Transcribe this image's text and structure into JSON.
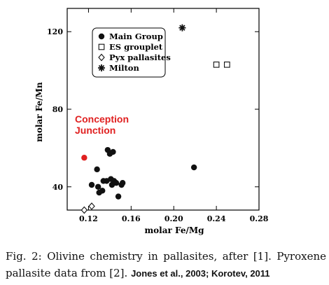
{
  "chart_data": {
    "type": "scatter",
    "xlabel": "molar Fe/Mg",
    "ylabel": "molar Fe/Mn",
    "xlim": [
      0.1,
      0.28
    ],
    "ylim": [
      28,
      132
    ],
    "xticks": [
      "0.12",
      "0.16",
      "0.20",
      "0.24",
      "0.28"
    ],
    "yticks": [
      "40",
      "80",
      "120"
    ],
    "legend_position": "top-left",
    "series": [
      {
        "name": "Main Group",
        "marker": "filled-circle",
        "color": "#111111",
        "points": [
          [
            0.123,
            41
          ],
          [
            0.128,
            49
          ],
          [
            0.129,
            40
          ],
          [
            0.13,
            37
          ],
          [
            0.133,
            38
          ],
          [
            0.134,
            43
          ],
          [
            0.137,
            43
          ],
          [
            0.138,
            59
          ],
          [
            0.14,
            57
          ],
          [
            0.141,
            44
          ],
          [
            0.142,
            41
          ],
          [
            0.143,
            58
          ],
          [
            0.144,
            43
          ],
          [
            0.146,
            42
          ],
          [
            0.148,
            35
          ],
          [
            0.151,
            41
          ],
          [
            0.152,
            42
          ],
          [
            0.219,
            50
          ]
        ]
      },
      {
        "name": "ES grouplet",
        "marker": "open-square",
        "color": "#111111",
        "points": [
          [
            0.24,
            103
          ],
          [
            0.25,
            103
          ]
        ]
      },
      {
        "name": "Pyx pallasites",
        "marker": "open-diamond",
        "color": "#111111",
        "points": [
          [
            0.116,
            28
          ],
          [
            0.123,
            30
          ]
        ]
      },
      {
        "name": "Milton",
        "marker": "star",
        "color": "#111111",
        "points": [
          [
            0.208,
            122
          ]
        ]
      }
    ],
    "annotations": [
      {
        "label": "Conception Junction",
        "color": "#e02020",
        "point": [
          0.116,
          55
        ]
      }
    ]
  },
  "annotation_label": "Conception\nJunction",
  "caption": {
    "text": "Fig. 2: Olivine chemistry in pallasites, after [1]. Pyroxene pallasite data from [2]. ",
    "citation": "Jones et al., 2003; Korotev, 2011"
  }
}
